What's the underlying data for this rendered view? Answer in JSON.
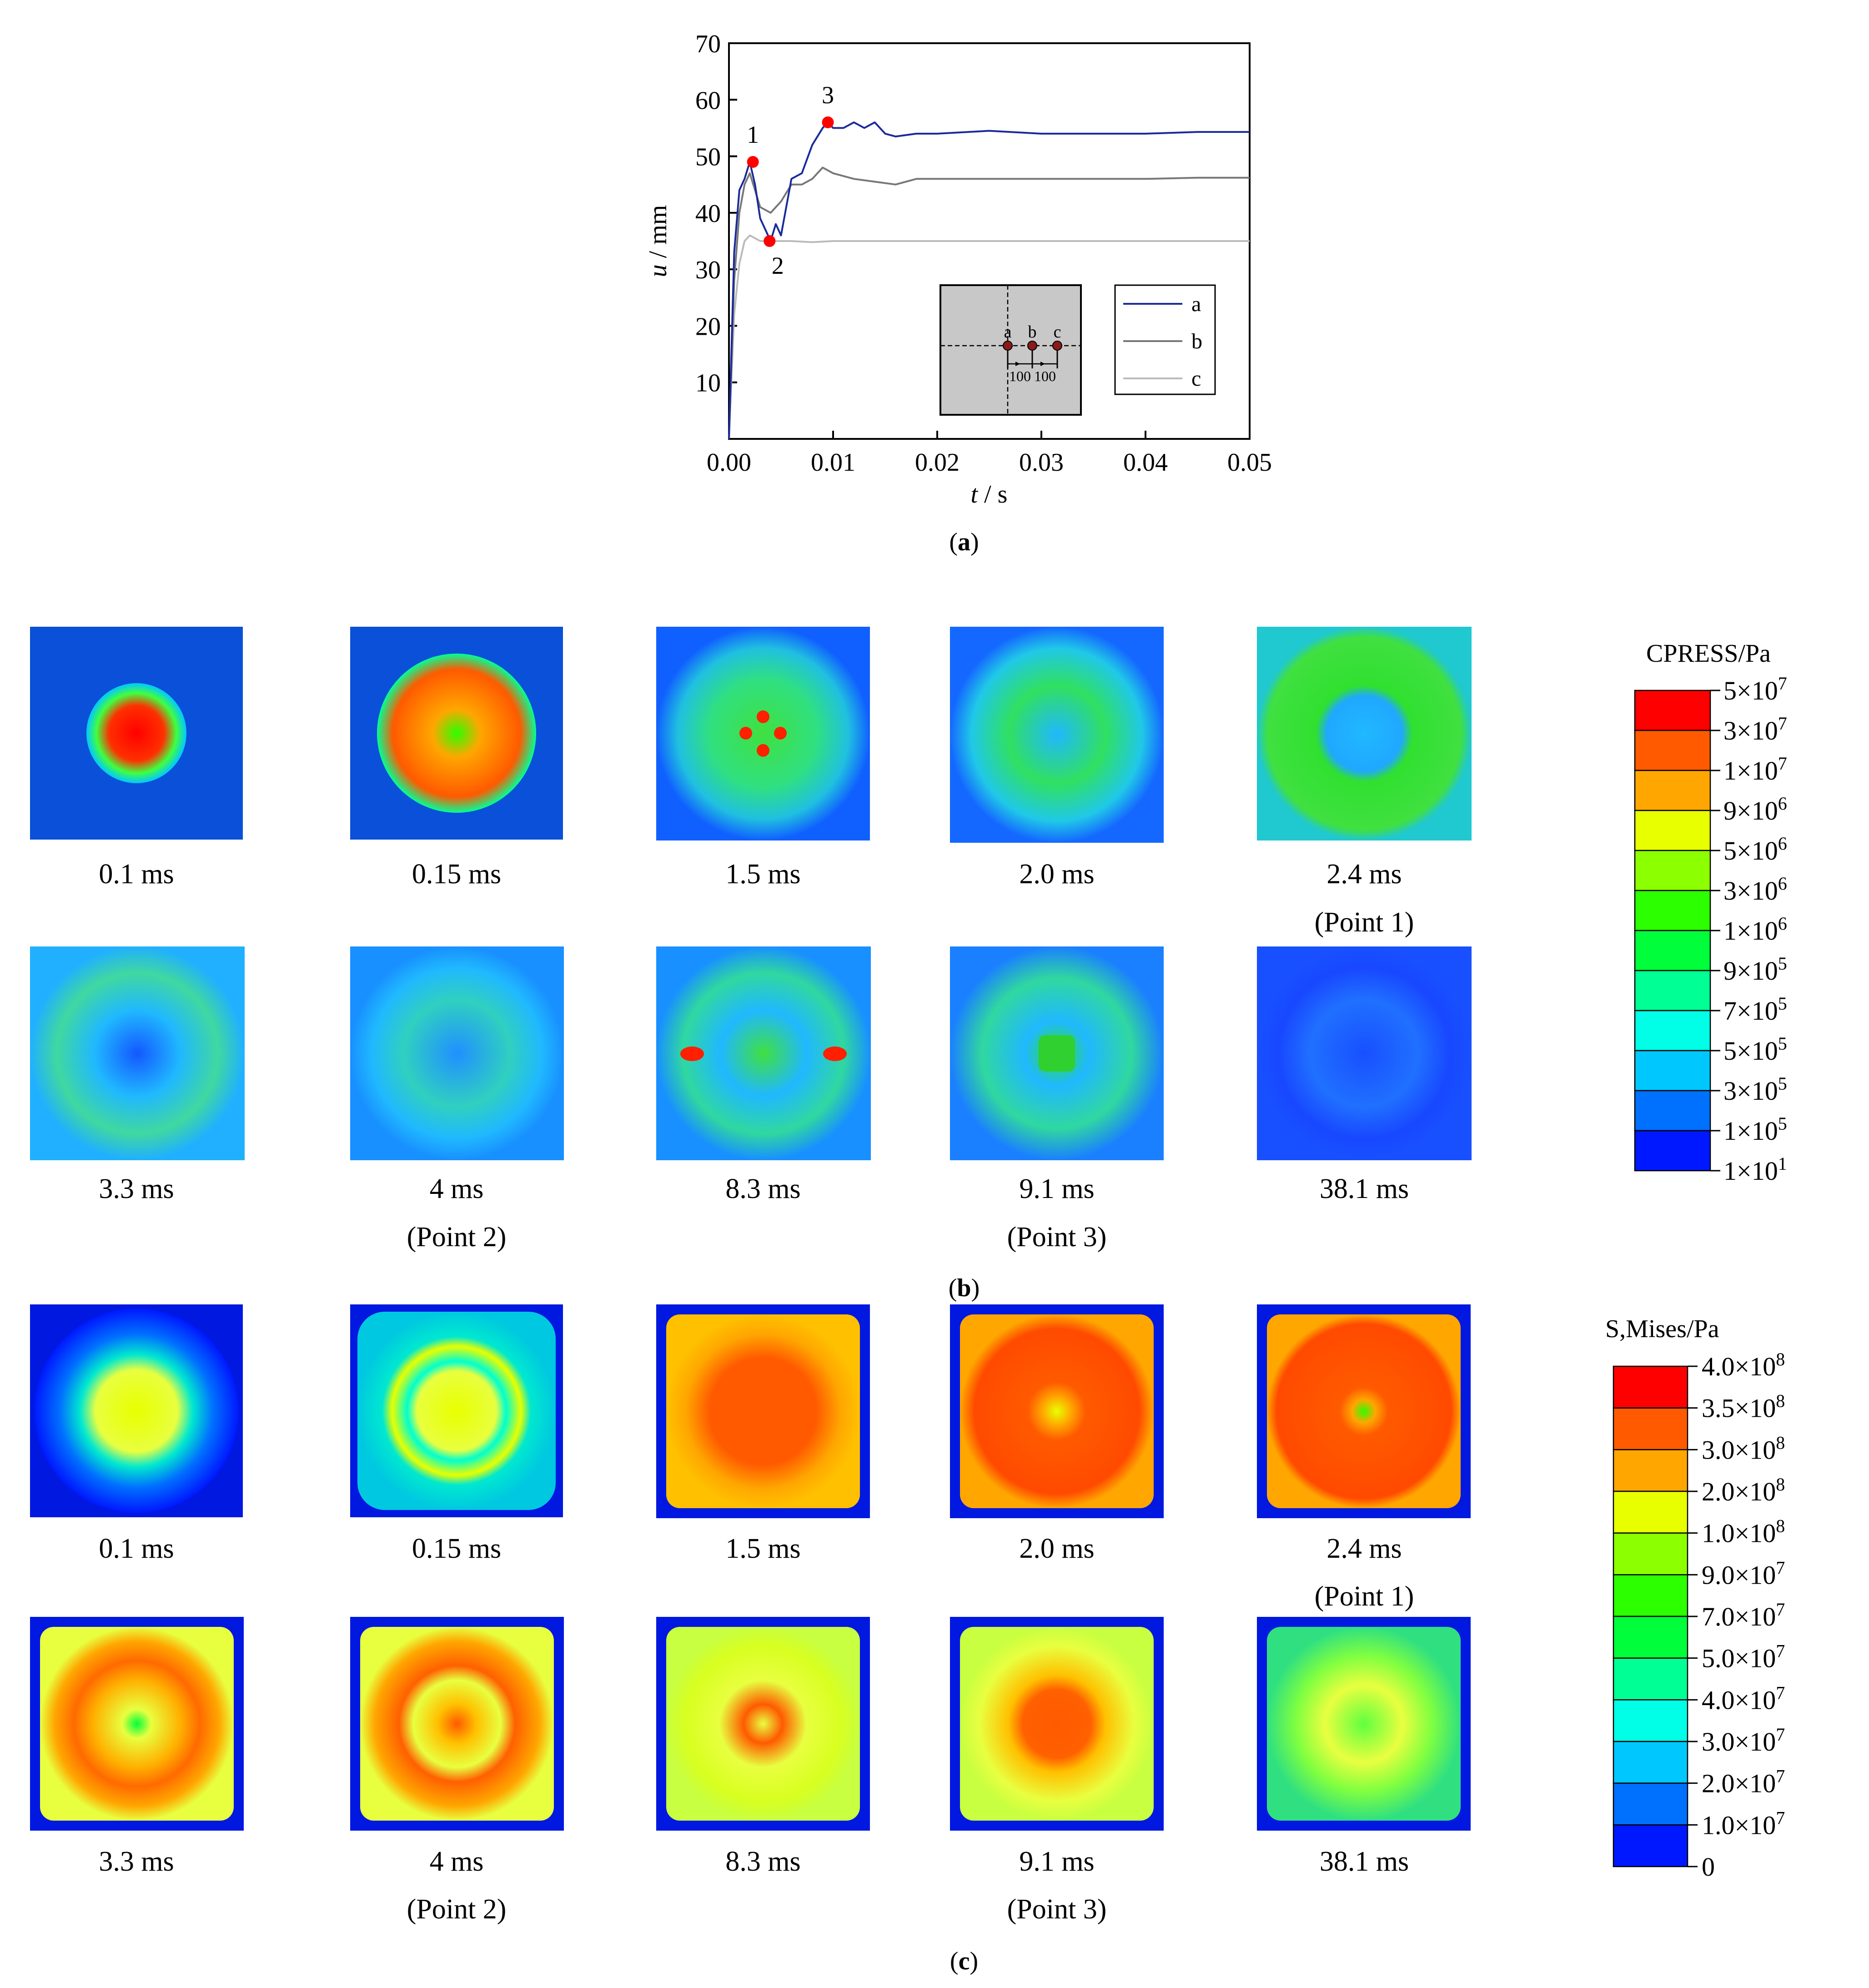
{
  "panels": {
    "a": {
      "label": "a"
    },
    "b": {
      "label": "b"
    },
    "c": {
      "label": "c"
    }
  },
  "chart_data": {
    "type": "line",
    "title": "",
    "xlabel_var": "t",
    "xlabel_unit": "s",
    "ylabel_var": "u",
    "ylabel_unit": "mm",
    "xlim": [
      0,
      0.05
    ],
    "ylim": [
      0,
      70
    ],
    "x_ticks": [
      0.0,
      0.01,
      0.02,
      0.03,
      0.04,
      0.05
    ],
    "x_tick_labels": [
      "0.00",
      "0.01",
      "0.02",
      "0.03",
      "0.04",
      "0.05"
    ],
    "y_ticks": [
      10,
      20,
      30,
      40,
      50,
      60,
      70
    ],
    "y_tick_labels": [
      "10",
      "20",
      "30",
      "40",
      "50",
      "60",
      "70"
    ],
    "series": [
      {
        "name": "a",
        "color": "#1a2a9c",
        "x": [
          0,
          0.0005,
          0.001,
          0.0015,
          0.002,
          0.0025,
          0.003,
          0.0035,
          0.004,
          0.0045,
          0.005,
          0.006,
          0.007,
          0.008,
          0.009,
          0.0095,
          0.01,
          0.011,
          0.012,
          0.013,
          0.014,
          0.015,
          0.016,
          0.018,
          0.02,
          0.025,
          0.03,
          0.035,
          0.04,
          0.045,
          0.05
        ],
        "y": [
          0,
          33,
          44,
          46,
          49,
          45,
          39,
          37,
          35,
          38,
          36,
          46,
          47,
          52,
          55,
          56,
          55,
          55,
          56,
          55,
          56,
          54,
          53.5,
          54,
          54,
          54.5,
          54,
          54,
          54,
          54.3,
          54.3
        ]
      },
      {
        "name": "b",
        "color": "#777777",
        "x": [
          0,
          0.0005,
          0.001,
          0.0015,
          0.002,
          0.0025,
          0.003,
          0.004,
          0.005,
          0.006,
          0.007,
          0.008,
          0.009,
          0.01,
          0.012,
          0.014,
          0.016,
          0.018,
          0.02,
          0.025,
          0.03,
          0.035,
          0.04,
          0.045,
          0.05
        ],
        "y": [
          0,
          28,
          40,
          45,
          47,
          44,
          41,
          40,
          42,
          45,
          45,
          46,
          48,
          47,
          46,
          45.5,
          45,
          46,
          46,
          46,
          46,
          46,
          46,
          46.2,
          46.2
        ]
      },
      {
        "name": "c",
        "color": "#bbbbbb",
        "x": [
          0,
          0.0005,
          0.001,
          0.0015,
          0.002,
          0.0025,
          0.003,
          0.004,
          0.005,
          0.006,
          0.008,
          0.01,
          0.015,
          0.02,
          0.025,
          0.03,
          0.035,
          0.04,
          0.045,
          0.05
        ],
        "y": [
          0,
          22,
          31,
          35,
          36,
          35.5,
          35,
          35,
          35,
          35,
          34.8,
          35,
          35,
          35,
          35,
          35,
          35,
          35,
          35,
          35
        ]
      }
    ],
    "markers": [
      {
        "label": "1",
        "x": 0.0023,
        "y": 49
      },
      {
        "label": "2",
        "x": 0.0039,
        "y": 35
      },
      {
        "label": "3",
        "x": 0.0095,
        "y": 56
      }
    ],
    "marker_color": "#ff0000",
    "legend": {
      "position": "bottom-right",
      "entries": [
        "a",
        "b",
        "c"
      ]
    },
    "inset": {
      "points": [
        "a",
        "b",
        "c"
      ],
      "spacings": [
        "100",
        "100"
      ]
    }
  },
  "contours": {
    "pressure": {
      "row1": [
        {
          "time": "0.1 ms",
          "note": ""
        },
        {
          "time": "0.15 ms",
          "note": ""
        },
        {
          "time": "1.5 ms",
          "note": ""
        },
        {
          "time": "2.0 ms",
          "note": ""
        },
        {
          "time": "2.4 ms",
          "note": "(Point 1)"
        }
      ],
      "row2": [
        {
          "time": "3.3 ms",
          "note": ""
        },
        {
          "time": "4 ms",
          "note": "(Point 2)"
        },
        {
          "time": "8.3 ms",
          "note": ""
        },
        {
          "time": "9.1 ms",
          "note": "(Point 3)"
        },
        {
          "time": "38.1 ms",
          "note": ""
        }
      ]
    },
    "mises": {
      "row1": [
        {
          "time": "0.1 ms",
          "note": ""
        },
        {
          "time": "0.15 ms",
          "note": ""
        },
        {
          "time": "1.5 ms",
          "note": ""
        },
        {
          "time": "2.0 ms",
          "note": ""
        },
        {
          "time": "2.4 ms",
          "note": "(Point 1)"
        }
      ],
      "row2": [
        {
          "time": "3.3 ms",
          "note": ""
        },
        {
          "time": "4 ms",
          "note": "(Point 2)"
        },
        {
          "time": "8.3 ms",
          "note": ""
        },
        {
          "time": "9.1 ms",
          "note": "(Point 3)"
        },
        {
          "time": "38.1 ms",
          "note": ""
        }
      ]
    }
  },
  "legends": {
    "cpress": {
      "title": "CPRESS/Pa",
      "labels": [
        {
          "m": "5",
          "e": "7"
        },
        {
          "m": "3",
          "e": "7"
        },
        {
          "m": "1",
          "e": "7"
        },
        {
          "m": "9",
          "e": "6"
        },
        {
          "m": "5",
          "e": "6"
        },
        {
          "m": "3",
          "e": "6"
        },
        {
          "m": "1",
          "e": "6"
        },
        {
          "m": "9",
          "e": "5"
        },
        {
          "m": "7",
          "e": "5"
        },
        {
          "m": "5",
          "e": "5"
        },
        {
          "m": "3",
          "e": "5"
        },
        {
          "m": "1",
          "e": "5"
        },
        {
          "m": "1",
          "e": "1"
        }
      ],
      "colors": [
        "#ff0000",
        "#ff5a00",
        "#ffa600",
        "#e8ff00",
        "#8cff00",
        "#2cff00",
        "#00ff3a",
        "#00ff94",
        "#00ffe6",
        "#00c8ff",
        "#0070ff",
        "#0018ff"
      ]
    },
    "mises": {
      "title": "S,Mises/Pa",
      "labels": [
        {
          "m": "4.0",
          "e": "8"
        },
        {
          "m": "3.5",
          "e": "8"
        },
        {
          "m": "3.0",
          "e": "8"
        },
        {
          "m": "2.0",
          "e": "8"
        },
        {
          "m": "1.0",
          "e": "8"
        },
        {
          "m": "9.0",
          "e": "7"
        },
        {
          "m": "7.0",
          "e": "7"
        },
        {
          "m": "5.0",
          "e": "7"
        },
        {
          "m": "4.0",
          "e": "7"
        },
        {
          "m": "3.0",
          "e": "7"
        },
        {
          "m": "2.0",
          "e": "7"
        },
        {
          "m": "1.0",
          "e": "7"
        },
        {
          "m": "0",
          "e": ""
        }
      ],
      "colors": [
        "#ff0000",
        "#ff5a00",
        "#ffa600",
        "#e8ff00",
        "#8cff00",
        "#2cff00",
        "#00ff3a",
        "#00ff94",
        "#00ffe6",
        "#00c8ff",
        "#0070ff",
        "#0018ff"
      ]
    }
  }
}
